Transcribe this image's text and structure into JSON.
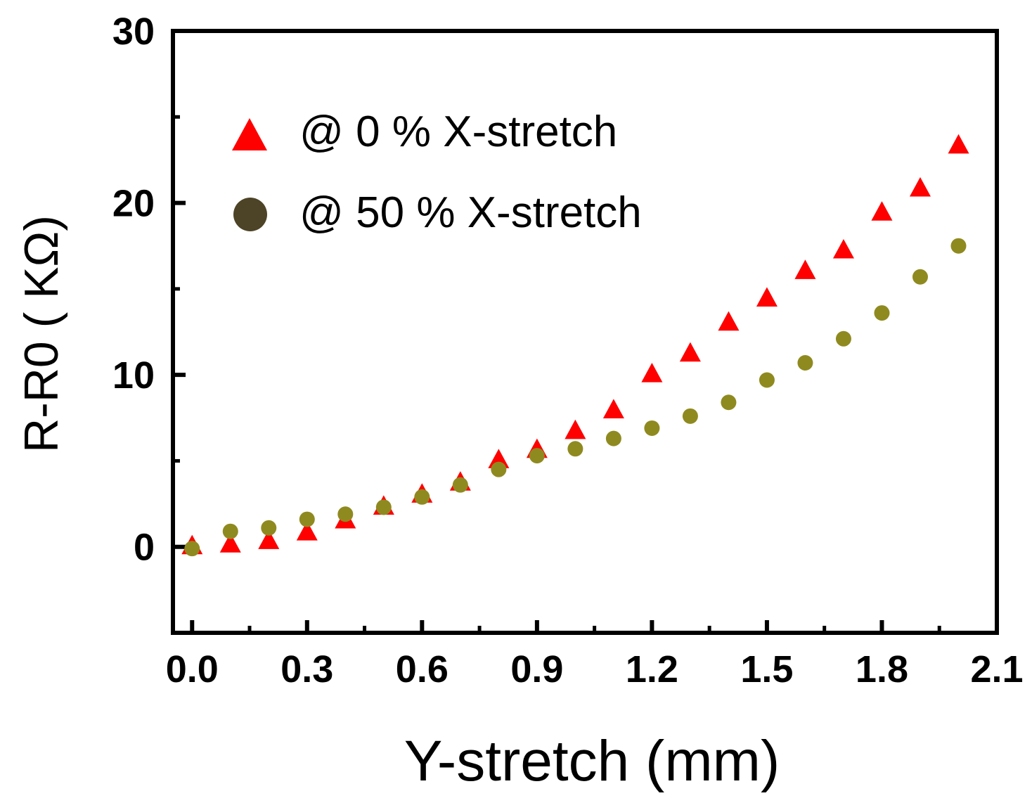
{
  "chart_data": {
    "type": "scatter",
    "title": "",
    "xlabel": "Y-stretch (mm)",
    "ylabel": "R-R0 ( KΩ)",
    "xlim": [
      -0.05,
      2.1
    ],
    "ylim": [
      -5,
      30
    ],
    "xticks": [
      0.0,
      0.3,
      0.6,
      0.9,
      1.2,
      1.5,
      1.8,
      2.1
    ],
    "xtick_labels": [
      "0.0",
      "0.3",
      "0.6",
      "0.9",
      "1.2",
      "1.5",
      "1.8",
      "2.1"
    ],
    "yticks": [
      0,
      10,
      20,
      30
    ],
    "ytick_labels": [
      "0",
      "10",
      "20",
      "30"
    ],
    "grid": false,
    "legend_position": "top-left",
    "x": [
      0.0,
      0.1,
      0.2,
      0.3,
      0.4,
      0.5,
      0.6,
      0.7,
      0.8,
      0.9,
      1.0,
      1.1,
      1.2,
      1.3,
      1.4,
      1.5,
      1.6,
      1.7,
      1.8,
      1.9,
      2.0
    ],
    "series": [
      {
        "name": "@ 0 % X-stretch",
        "marker": "triangle",
        "color": "#ff0000",
        "legend_color": "#ff0000",
        "values": [
          0.0,
          0.1,
          0.3,
          0.8,
          1.5,
          2.3,
          3.0,
          3.7,
          5.0,
          5.6,
          6.7,
          7.9,
          10.0,
          11.2,
          13.0,
          14.4,
          16.0,
          17.2,
          19.4,
          20.8,
          23.3
        ]
      },
      {
        "name": "@ 50 % X-stretch",
        "marker": "circle",
        "color": "#8f8a1f",
        "legend_color": "#4d4326",
        "values": [
          -0.1,
          0.9,
          1.1,
          1.6,
          1.9,
          2.3,
          2.9,
          3.6,
          4.5,
          5.3,
          5.7,
          6.3,
          6.9,
          7.6,
          8.4,
          9.7,
          10.7,
          12.1,
          13.6,
          15.7,
          17.5
        ]
      }
    ]
  }
}
